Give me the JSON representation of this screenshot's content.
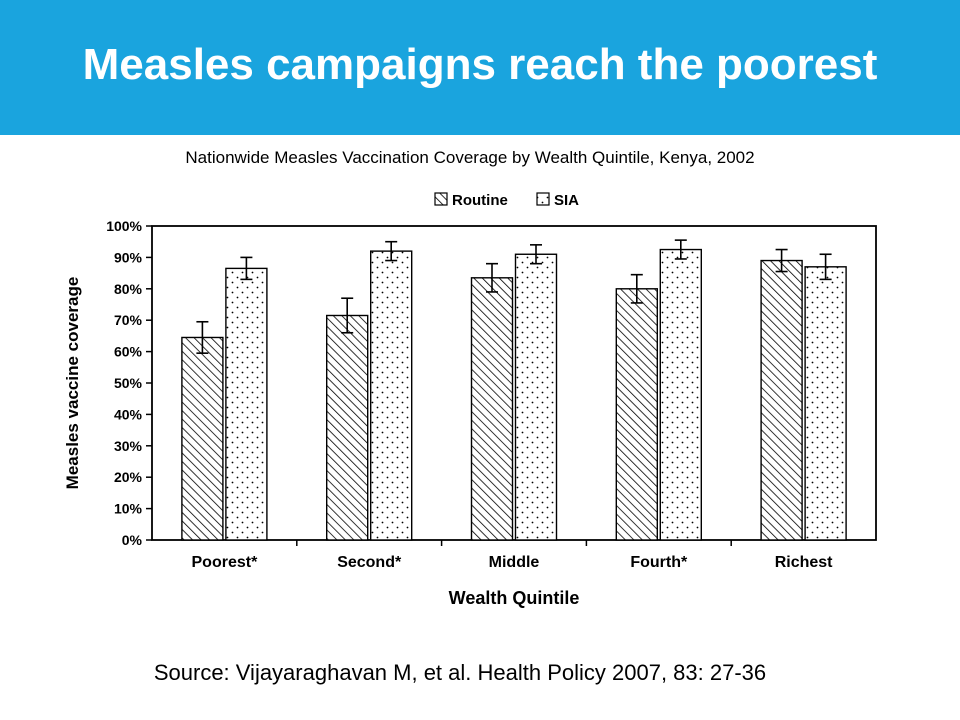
{
  "slide": {
    "title": "Measles campaigns reach the poorest",
    "subtitle": "Nationwide Measles Vaccination Coverage by Wealth Quintile, Kenya, 2002",
    "source": "Source: Vijayaraghavan M, et al. Health Policy 2007, 83: 27-36",
    "header_color": "#1aa4de"
  },
  "chart_data": {
    "type": "bar",
    "title": "",
    "xlabel": "Wealth Quintile",
    "ylabel": "Measles vaccine coverage",
    "categories": [
      "Poorest*",
      "Second*",
      "Middle",
      "Fourth*",
      "Richest"
    ],
    "ylim": [
      0,
      100
    ],
    "yticks": [
      "0%",
      "10%",
      "20%",
      "30%",
      "40%",
      "50%",
      "60%",
      "70%",
      "80%",
      "90%",
      "100%"
    ],
    "grid": false,
    "legend_position": "top-center",
    "series": [
      {
        "name": "Routine",
        "pattern": "hatched",
        "values": [
          64.5,
          71.5,
          83.5,
          80,
          89
        ],
        "error": [
          5,
          5.5,
          4.5,
          4.5,
          3.5
        ]
      },
      {
        "name": "SIA",
        "pattern": "dotted",
        "values": [
          86.5,
          92,
          91,
          92.5,
          87
        ],
        "error": [
          3.5,
          3,
          3,
          3,
          4
        ]
      }
    ]
  }
}
